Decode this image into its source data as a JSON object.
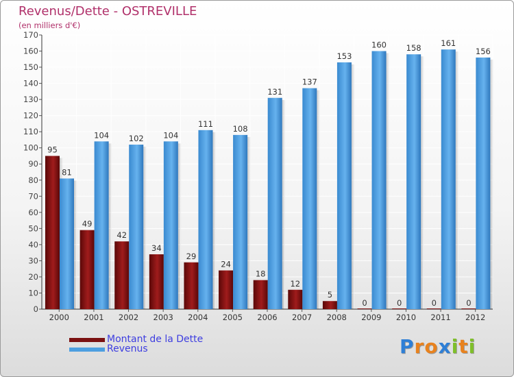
{
  "colors": {
    "dette": "#7a1010",
    "revenus": "#4d9fe0",
    "title": "#b0306a",
    "legend_text": "#3d3de0"
  },
  "header": {
    "title": "Revenus/Dette - OSTREVILLE",
    "subtitle": "(en milliers d'€)"
  },
  "legend": {
    "dette_label": "Montant de la Dette",
    "revenus_label": "Revenus"
  },
  "brand": {
    "letters": [
      "P",
      "r",
      "o",
      "x",
      "i",
      "t",
      "i"
    ],
    "colors": [
      "#2e7fd6",
      "#e8821e",
      "#e8821e",
      "#2e7fd6",
      "#7fbf2a",
      "#e8821e",
      "#7fbf2a"
    ]
  },
  "chart_data": {
    "type": "bar",
    "title": "Revenus/Dette - OSTREVILLE",
    "subtitle": "(en milliers d'€)",
    "categories": [
      "2000",
      "2001",
      "2002",
      "2003",
      "2004",
      "2005",
      "2006",
      "2007",
      "2008",
      "2009",
      "2010",
      "2011",
      "2012"
    ],
    "series": [
      {
        "name": "Montant de la Dette",
        "color": "#7a1010",
        "values": [
          95,
          49,
          42,
          34,
          29,
          24,
          18,
          12,
          5,
          0,
          0,
          0,
          0
        ]
      },
      {
        "name": "Revenus",
        "color": "#4d9fe0",
        "values": [
          81,
          104,
          102,
          104,
          111,
          108,
          131,
          137,
          153,
          160,
          158,
          161,
          156
        ]
      }
    ],
    "ylim": [
      0,
      170
    ],
    "yticks": [
      0,
      10,
      20,
      30,
      40,
      50,
      60,
      70,
      80,
      90,
      100,
      110,
      120,
      130,
      140,
      150,
      160,
      170
    ],
    "grid": true,
    "legend_position": "bottom-left"
  }
}
